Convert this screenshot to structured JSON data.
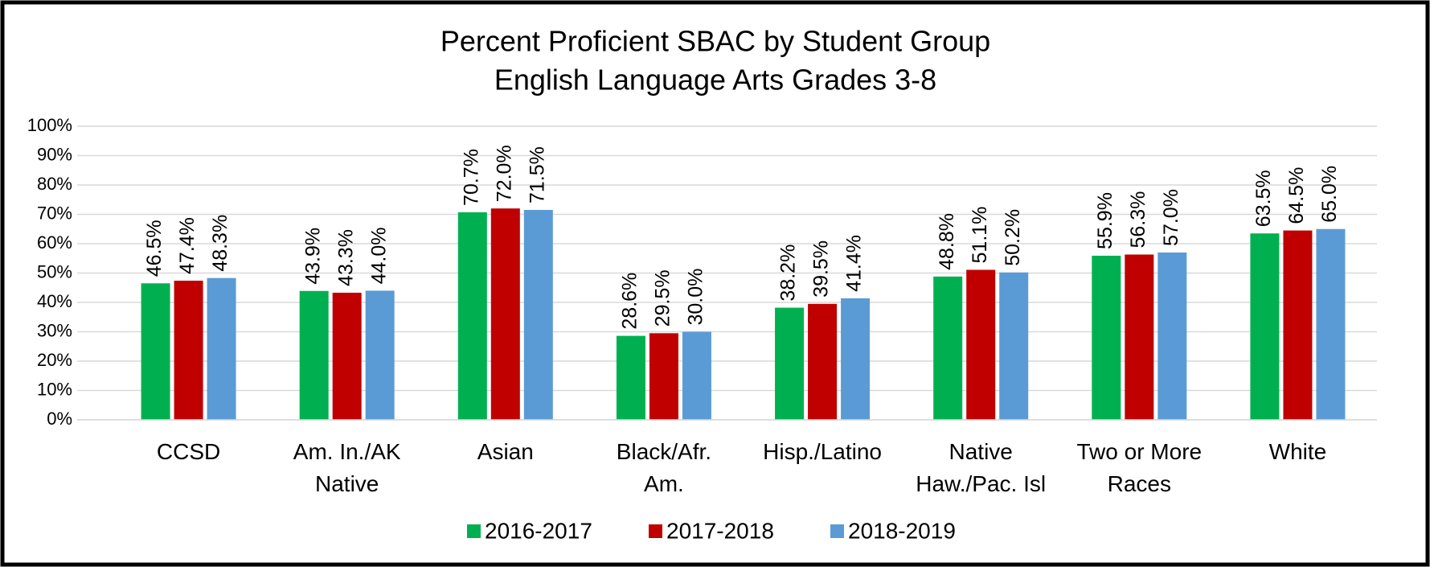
{
  "chart_data": {
    "type": "bar",
    "title": [
      "Percent Proficient SBAC by Student Group",
      "English Language Arts Grades 3-8"
    ],
    "categories": [
      "CCSD",
      "Am. In./AK Native",
      "Asian",
      "Black/Afr. Am.",
      "Hisp./Latino",
      "Native Haw./Pac. Isl",
      "Two or More Races",
      "White"
    ],
    "series": [
      {
        "name": "2016-2017",
        "color": "#00b050",
        "values": [
          46.5,
          43.9,
          70.7,
          28.6,
          38.2,
          48.8,
          55.9,
          63.5
        ],
        "value_labels": [
          "46.5%",
          "43.9%",
          "70.7%",
          "28.6%",
          "38.2%",
          "48.8%",
          "55.9%",
          "63.5%"
        ]
      },
      {
        "name": "2017-2018",
        "color": "#c00000",
        "values": [
          47.4,
          43.3,
          72.0,
          29.5,
          39.5,
          51.1,
          56.3,
          64.5
        ],
        "value_labels": [
          "47.4%",
          "43.3%",
          "72.0%",
          "29.5%",
          "39.5%",
          "51.1%",
          "56.3%",
          "64.5%"
        ]
      },
      {
        "name": "2018-2019",
        "color": "#5b9bd5",
        "values": [
          48.3,
          44.0,
          71.5,
          30.0,
          41.4,
          50.2,
          57.0,
          65.0
        ],
        "value_labels": [
          "48.3%",
          "44.0%",
          "71.5%",
          "30.0%",
          "41.4%",
          "50.2%",
          "57.0%",
          "65.0%"
        ]
      }
    ],
    "ylim": [
      0,
      100
    ],
    "yticks": [
      {
        "value": 0,
        "label": "0%"
      },
      {
        "value": 10,
        "label": "10%"
      },
      {
        "value": 20,
        "label": "20%"
      },
      {
        "value": 30,
        "label": "30%"
      },
      {
        "value": 40,
        "label": "40%"
      },
      {
        "value": 50,
        "label": "50%"
      },
      {
        "value": 60,
        "label": "60%"
      },
      {
        "value": 70,
        "label": "70%"
      },
      {
        "value": 80,
        "label": "80%"
      },
      {
        "value": 90,
        "label": "90%"
      },
      {
        "value": 100,
        "label": "100%"
      }
    ],
    "grid": true,
    "legend": "bottom"
  }
}
